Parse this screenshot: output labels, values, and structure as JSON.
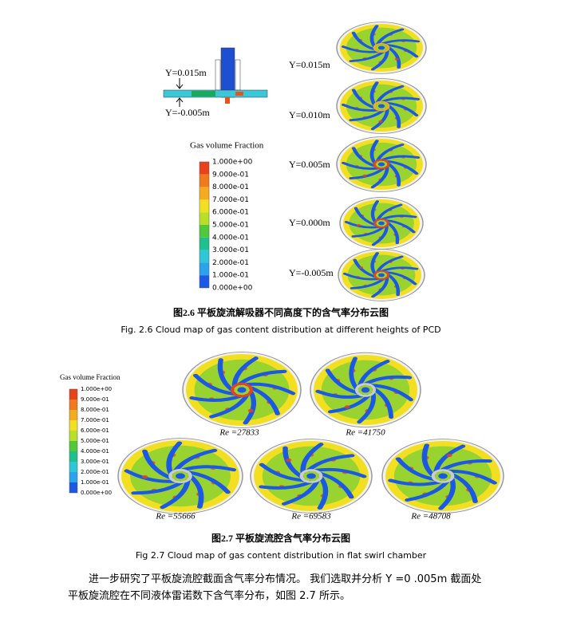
{
  "figure_2_6": {
    "side_labels": [
      "Y=0.015m",
      "Y=-0.005m"
    ],
    "legend": {
      "title": "Gas volume Fraction",
      "labels": [
        "1.000e+00",
        "9.000e-01",
        "8.000e-01",
        "7.000e-01",
        "6.000e-01",
        "5.000e-01",
        "4.000e-01",
        "3.000e-01",
        "2.000e-01",
        "1.000e-01",
        "0.000e+00"
      ]
    },
    "slices": [
      "Y=0.015m",
      "Y=0.010m",
      "Y=0.005m",
      "Y=0.000m",
      "Y=-0.005m"
    ],
    "caption_cn": "图2.6  平板旋流解吸器不同高度下的含气率分布云图",
    "caption_en": "Fig. 2.6  Cloud map of gas content distribution at different heights of PCD"
  },
  "figure_2_7": {
    "legend": {
      "title": "Gas volume Fraction",
      "labels": [
        "1.000e+00",
        "9.000e-01",
        "8.000e-01",
        "7.000e-01",
        "6.000e-01",
        "5.000e-01",
        "4.000e-01",
        "3.000e-01",
        "2.000e-01",
        "1.000e-01",
        "0.000e+00"
      ]
    },
    "panels": [
      "Re =27833",
      "Re =41750",
      "Re =55666",
      "Re =69583",
      "Re =48708"
    ],
    "caption_cn": "图2.7  平板旋流腔含气率分布云图",
    "caption_en": "Fig 2.7  Cloud map of gas content distribution in flat swirl chamber"
  },
  "paragraph": "进一步研究了平板旋流腔截面含气率分布情况。 我们选取并分析 Y =0 .005m 截面处平板旋流腔在不同液体雷诺数下含气率分布，如图 2.7 所示。"
}
